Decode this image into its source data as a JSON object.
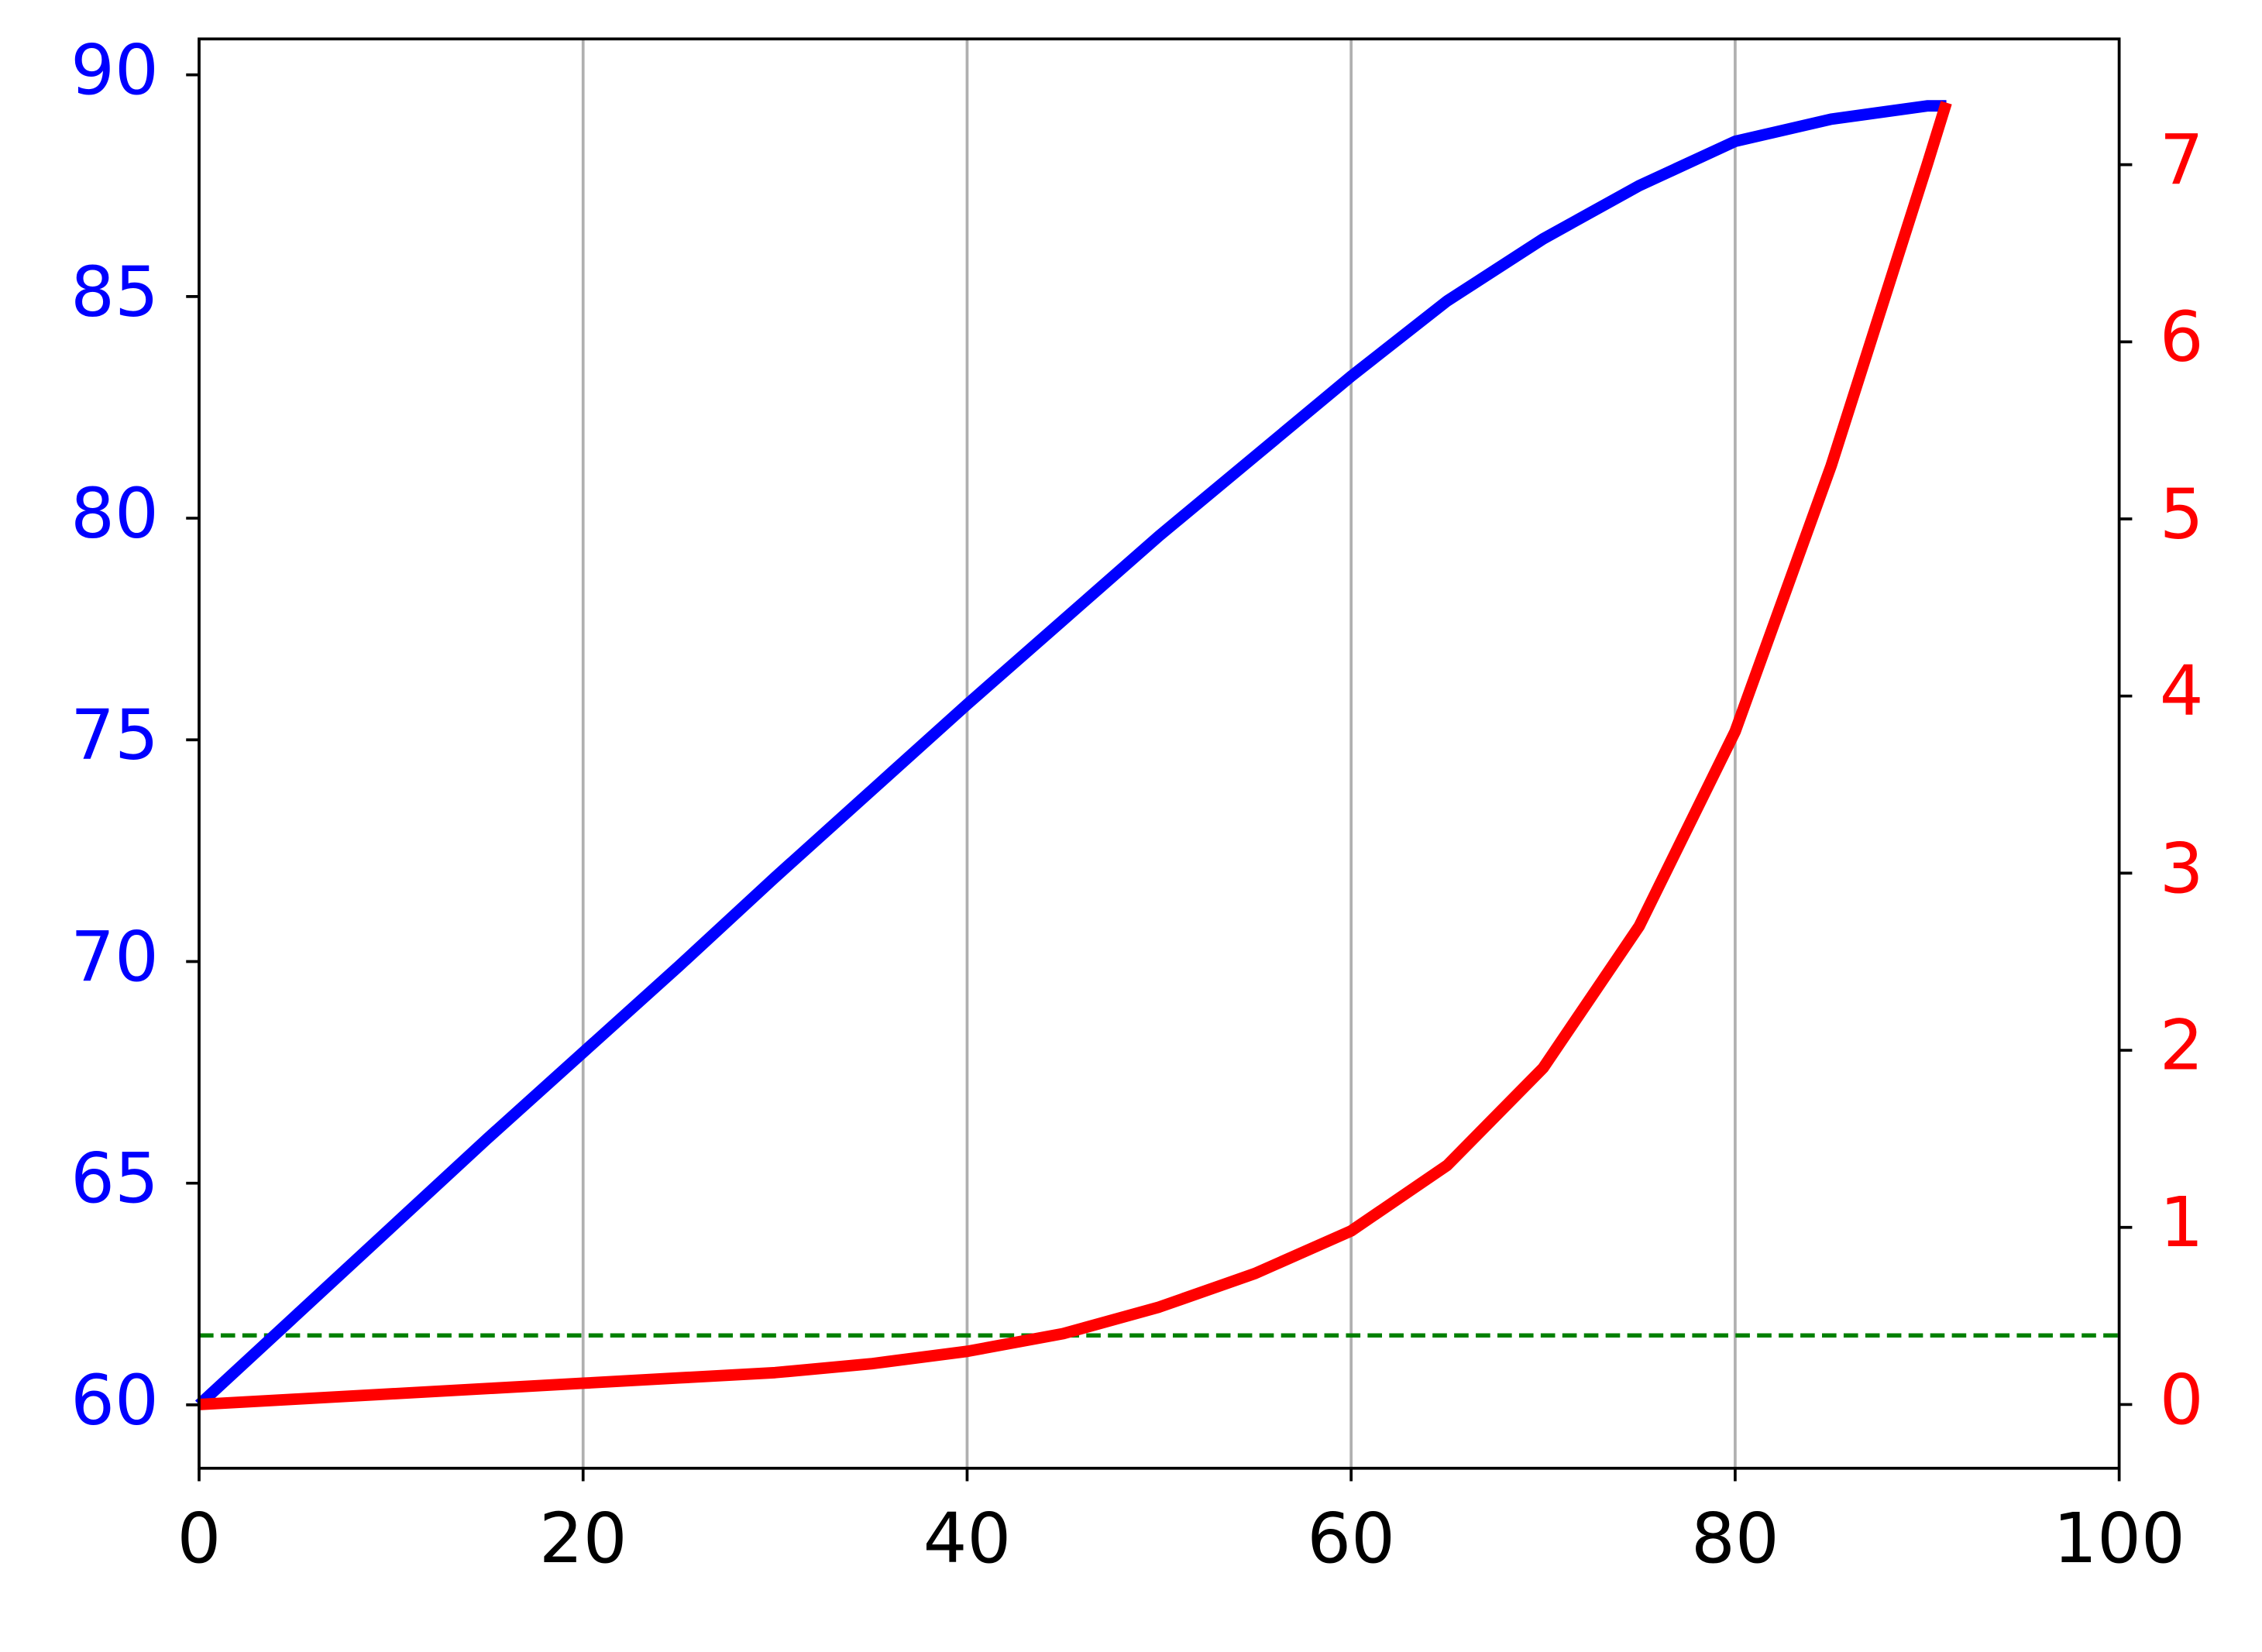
{
  "chart_data": {
    "type": "line",
    "x": [
      0,
      5,
      10,
      15,
      20,
      25,
      30,
      35,
      40,
      45,
      50,
      55,
      60,
      65,
      70,
      75,
      80,
      85,
      90,
      91
    ],
    "series": [
      {
        "color": "#0000ff",
        "axis": "y",
        "values": [
          60.0,
          62.0,
          64.0,
          66.0,
          67.95,
          69.9,
          71.9,
          73.85,
          75.8,
          77.7,
          79.6,
          81.4,
          83.2,
          84.9,
          86.3,
          87.5,
          88.5,
          89.0,
          89.3,
          89.3
        ]
      },
      {
        "color": "#ff0000",
        "axis": "y2",
        "values": [
          0.0,
          0.03,
          0.06,
          0.09,
          0.12,
          0.15,
          0.18,
          0.23,
          0.3,
          0.4,
          0.55,
          0.74,
          0.98,
          1.35,
          1.9,
          2.7,
          3.8,
          5.3,
          7.0,
          7.35
        ]
      }
    ],
    "xlim": [
      0,
      100
    ],
    "xticks": [
      0,
      20,
      40,
      60,
      80,
      100
    ],
    "ylim": [
      58.57,
      90.81
    ],
    "yticks": [
      60,
      65,
      70,
      75,
      80,
      85,
      90
    ],
    "ytick_color": "#0000ff",
    "y2lim": [
      -0.36,
      7.71
    ],
    "y2ticks": [
      0,
      1,
      2,
      3,
      4,
      5,
      6,
      7
    ],
    "y2tick_color": "#ff0000",
    "hlines": [
      {
        "value": 0.39,
        "axis": "y2",
        "color": "#008000"
      }
    ],
    "grid": "x"
  }
}
